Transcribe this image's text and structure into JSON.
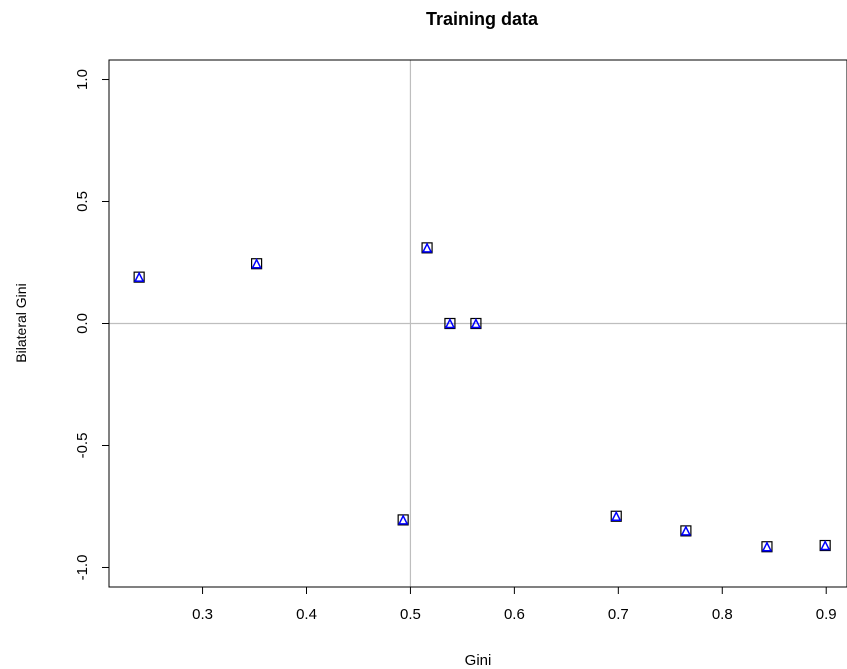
{
  "chart_data": {
    "type": "scatter",
    "title": "Training data",
    "xlabel": "Gini",
    "ylabel": "Bilateral Gini",
    "xlim": [
      0.21,
      0.92
    ],
    "ylim": [
      -1.08,
      1.08
    ],
    "xticks": [
      0.3,
      0.4,
      0.5,
      0.6,
      0.7,
      0.8,
      0.9
    ],
    "xtick_labels": [
      "0.3",
      "0.4",
      "0.5",
      "0.6",
      "0.7",
      "0.8",
      "0.9"
    ],
    "yticks": [
      1.0,
      0.5,
      0.0,
      -0.5,
      -1.0
    ],
    "ytick_labels": [
      "1.0",
      "0.5",
      "0.0",
      "-0.5",
      "-1.0"
    ],
    "reference_lines": {
      "vertical_x": 0.5,
      "horizontal_y": 0.0,
      "color": "#bebebe"
    },
    "marker": {
      "shapes": [
        "square",
        "triangle"
      ],
      "square_color": "#000000",
      "triangle_color": "#0000ff"
    },
    "grid": false,
    "points": [
      {
        "x": 0.239,
        "y": 0.19
      },
      {
        "x": 0.352,
        "y": 0.245
      },
      {
        "x": 0.493,
        "y": -0.805
      },
      {
        "x": 0.516,
        "y": 0.31
      },
      {
        "x": 0.538,
        "y": 0.0
      },
      {
        "x": 0.563,
        "y": 0.0
      },
      {
        "x": 0.698,
        "y": -0.79
      },
      {
        "x": 0.765,
        "y": -0.85
      },
      {
        "x": 0.843,
        "y": -0.915
      },
      {
        "x": 0.899,
        "y": -0.91
      }
    ]
  }
}
